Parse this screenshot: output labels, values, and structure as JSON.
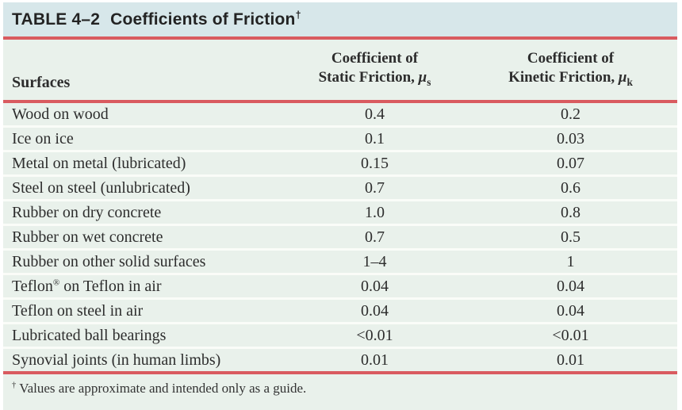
{
  "title": {
    "table_label": "TABLE 4–2",
    "table_title": "Coefficients of Friction",
    "dagger": "†"
  },
  "header": {
    "surfaces": "Surfaces",
    "static": {
      "line1": "Coefficient of",
      "line2": "Static Friction,",
      "symbol": "μ",
      "sub": "s"
    },
    "kinetic": {
      "line1": "Coefficient of",
      "line2": "Kinetic Friction,",
      "symbol": "μ",
      "sub": "k"
    }
  },
  "chart_data": {
    "type": "table",
    "title": "TABLE 4–2 Coefficients of Friction",
    "columns": [
      "Surfaces",
      "Coefficient of Static Friction, μs",
      "Coefficient of Kinetic Friction, μk"
    ],
    "rows": [
      {
        "surface": "Wood on wood",
        "static": "0.4",
        "kinetic": "0.2"
      },
      {
        "surface": "Ice on ice",
        "static": "0.1",
        "kinetic": "0.03"
      },
      {
        "surface": "Metal on metal (lubricated)",
        "static": "0.15",
        "kinetic": "0.07"
      },
      {
        "surface": "Steel on steel (unlubricated)",
        "static": "0.7",
        "kinetic": "0.6"
      },
      {
        "surface": "Rubber on dry concrete",
        "static": "1.0",
        "kinetic": "0.8"
      },
      {
        "surface": "Rubber on wet concrete",
        "static": "0.7",
        "kinetic": "0.5"
      },
      {
        "surface": "Rubber on other solid surfaces",
        "static": "1–4",
        "kinetic": "1"
      },
      {
        "surface": "Teflon® on Teflon in air",
        "surface_pre": "Teflon",
        "surface_sup": "®",
        "surface_post": " on Teflon in air",
        "static": "0.04",
        "kinetic": "0.04"
      },
      {
        "surface": "Teflon on steel in air",
        "static": "0.04",
        "kinetic": "0.04"
      },
      {
        "surface": "Lubricated ball bearings",
        "static": "<0.01",
        "kinetic": "<0.01"
      },
      {
        "surface": "Synovial joints (in human limbs)",
        "static": "0.01",
        "kinetic": "0.01"
      }
    ]
  },
  "footnote": {
    "dagger": "†",
    "text": "Values are approximate and intended only as a guide."
  },
  "colors": {
    "title_bar_bg": "#d7e7ea",
    "table_bg": "#e9f1eb",
    "rule_red": "#d95b60",
    "separator": "#fafcf8",
    "text": "#2d2d2d"
  }
}
